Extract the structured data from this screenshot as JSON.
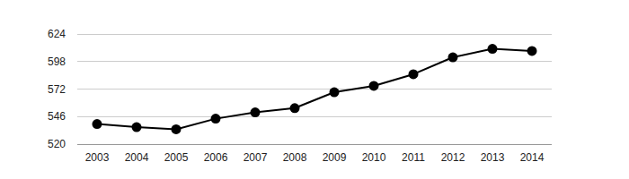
{
  "chart_data": {
    "type": "line",
    "categories": [
      "2003",
      "2004",
      "2005",
      "2006",
      "2007",
      "2008",
      "2009",
      "2010",
      "2011",
      "2012",
      "2013",
      "2014"
    ],
    "values": [
      539,
      536,
      534,
      544,
      550,
      554,
      569,
      575,
      586,
      602,
      610,
      608
    ],
    "color": "#000000",
    "marker": "circle",
    "line_style": "solid",
    "ylim": [
      520,
      624
    ],
    "yticks": [
      520,
      546,
      572,
      598,
      624
    ],
    "grid": true
  }
}
